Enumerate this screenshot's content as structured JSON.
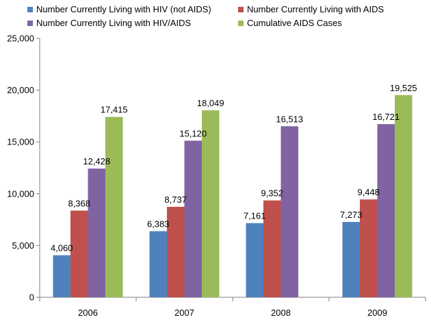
{
  "chart_data": {
    "type": "bar",
    "categories": [
      "2006",
      "2007",
      "2008",
      "2009"
    ],
    "series": [
      {
        "name": "Number Currently Living with HIV (not AIDS)",
        "color": "#4F81BD",
        "values": [
          4060,
          6383,
          7161,
          7273
        ],
        "labels": [
          "4,060",
          "6,383",
          "7,161",
          "7,273"
        ]
      },
      {
        "name": "Number Currently Living with AIDS",
        "color": "#C0504D",
        "values": [
          8368,
          8737,
          9352,
          9448
        ],
        "labels": [
          "8,368",
          "8,737",
          "9,352",
          "9,448"
        ]
      },
      {
        "name": "Number Currently Living with HIV/AIDS",
        "color": "#8064A2",
        "values": [
          12428,
          15120,
          16513,
          16721
        ],
        "labels": [
          "12,428",
          "15,120",
          "16,513",
          "16,721"
        ]
      },
      {
        "name": "Cumulative AIDS Cases",
        "color": "#9BBB59",
        "values": [
          17415,
          18049,
          null,
          19525
        ],
        "labels": [
          "17,415",
          "18,049",
          "",
          "19,525"
        ]
      }
    ],
    "yticks": [
      "0",
      "5,000",
      "10,000",
      "15,000",
      "20,000",
      "25,000"
    ],
    "ylim": [
      0,
      25000
    ],
    "legend_position": "top",
    "grid": false
  }
}
